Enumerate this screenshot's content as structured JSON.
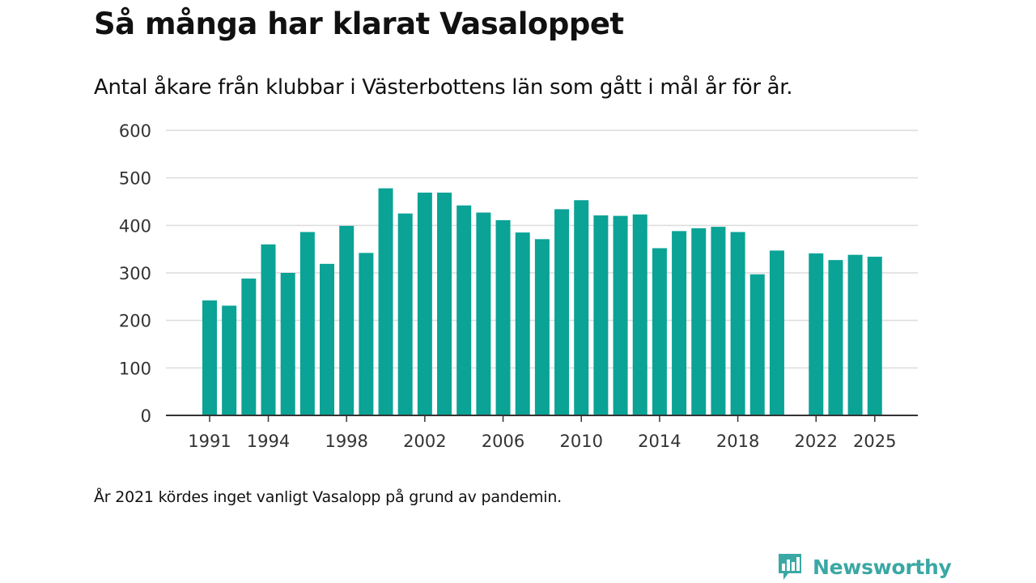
{
  "header": {
    "title": "Så många har klarat Vasaloppet",
    "subtitle": "Antal åkare från klubbar i Västerbottens län som gått i mål år för år."
  },
  "footnote": "År 2021 kördes inget vanligt Vasalopp på grund av pandemin.",
  "brand": {
    "name": "Newsworthy",
    "icon": "bar-chart-speech-bubble-icon",
    "color": "#3aa8a4"
  },
  "colors": {
    "bar": "#0aa396",
    "grid": "#dcdcdc",
    "axis": "#333333",
    "tick_text": "#333333"
  },
  "chart_data": {
    "type": "bar",
    "title": "Så många har klarat Vasaloppet",
    "subtitle": "Antal åkare från klubbar i Västerbottens län som gått i mål år för år.",
    "xlabel": "",
    "ylabel": "",
    "ylim": [
      0,
      600
    ],
    "yticks": [
      0,
      100,
      200,
      300,
      400,
      500,
      600
    ],
    "xticks": [
      1991,
      1994,
      1998,
      2002,
      2006,
      2010,
      2014,
      2018,
      2022,
      2025
    ],
    "grid": true,
    "categories": [
      1991,
      1992,
      1993,
      1994,
      1995,
      1996,
      1997,
      1998,
      1999,
      2000,
      2001,
      2002,
      2003,
      2004,
      2005,
      2006,
      2007,
      2008,
      2009,
      2010,
      2011,
      2012,
      2013,
      2014,
      2015,
      2016,
      2017,
      2018,
      2019,
      2020,
      2021,
      2022,
      2023,
      2024,
      2025
    ],
    "values": [
      242,
      231,
      288,
      360,
      300,
      386,
      319,
      399,
      342,
      478,
      425,
      469,
      469,
      442,
      427,
      411,
      385,
      371,
      434,
      453,
      421,
      420,
      423,
      352,
      388,
      394,
      397,
      386,
      297,
      347,
      null,
      341,
      327,
      338,
      334
    ]
  }
}
